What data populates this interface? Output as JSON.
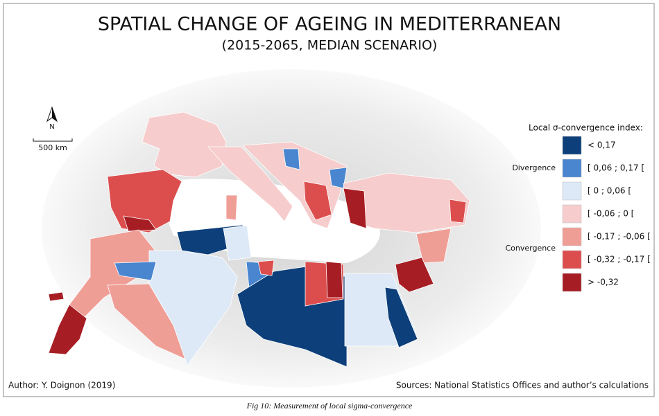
{
  "header": {
    "title": "SPATIAL CHANGE OF AGEING IN MEDITERRANEAN",
    "subtitle": "(2015-2065, MEDIAN SCENARIO)"
  },
  "map": {
    "north": "N",
    "scale": "500 km"
  },
  "legend": {
    "title": "Local σ-convergence index:",
    "groups": [
      "Divergence",
      "Convergence"
    ],
    "items": [
      {
        "label": "< 0,17",
        "color": "#0d3f7a"
      },
      {
        "label": "[ 0,06 ; 0,17 [",
        "color": "#4a86cf"
      },
      {
        "label": "[ 0 ; 0,06 [",
        "color": "#dde9f6"
      },
      {
        "label": "[ -0,06 ; 0 [",
        "color": "#f6cccc"
      },
      {
        "label": "[ -0,17 ; -0,06 [",
        "color": "#ef9e96"
      },
      {
        "label": "[ -0,32 ; -0,17 [",
        "color": "#dc4e4e"
      },
      {
        "label": "> -0,32",
        "color": "#a71d24"
      }
    ]
  },
  "footer": {
    "author": "Author: Y. Doignon (2019)",
    "sources": "Sources: National Statistics Offices and author’s calculations"
  },
  "caption": "Fig 10: Measurement of local sigma-convergence"
}
